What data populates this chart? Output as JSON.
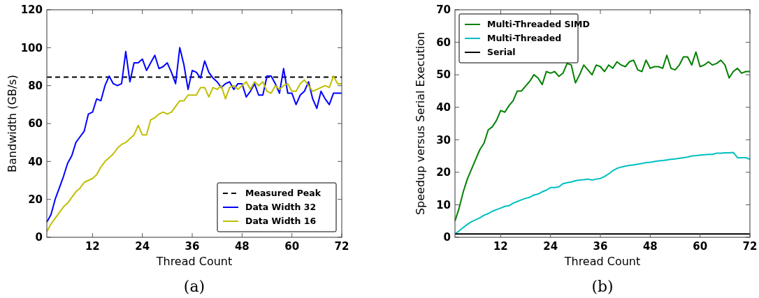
{
  "chart_data": [
    {
      "type": "line",
      "xlabel": "Thread Count",
      "ylabel": "Bandwidth (GB/s)",
      "annotations": [
        "(a)"
      ],
      "x": [
        1,
        2,
        3,
        4,
        5,
        6,
        7,
        8,
        9,
        10,
        11,
        12,
        13,
        14,
        15,
        16,
        17,
        18,
        19,
        20,
        21,
        22,
        23,
        24,
        25,
        26,
        27,
        28,
        29,
        30,
        31,
        32,
        33,
        34,
        35,
        36,
        37,
        38,
        39,
        40,
        41,
        42,
        43,
        44,
        45,
        46,
        47,
        48,
        49,
        50,
        51,
        52,
        53,
        54,
        55,
        56,
        57,
        58,
        59,
        60,
        61,
        62,
        63,
        64,
        65,
        66,
        67,
        68,
        69,
        70,
        71,
        72
      ],
      "xlim": [
        1,
        72
      ],
      "xticks": [
        12,
        24,
        36,
        48,
        60,
        72
      ],
      "ylim": [
        0,
        120
      ],
      "yticks": [
        0,
        20,
        40,
        60,
        80,
        100,
        120
      ],
      "ref_lines": [
        {
          "axis": "y",
          "value": 84.5,
          "label": "Measured Peak",
          "color": "#000000",
          "line_style": "dashed"
        }
      ],
      "series": [
        {
          "name": "Data Width 32",
          "color": "#0000ff",
          "values": [
            8,
            12,
            20,
            26,
            32,
            39,
            43,
            50,
            53,
            56,
            65,
            66,
            73,
            72,
            80,
            85,
            81,
            80,
            81,
            98,
            82,
            92,
            92,
            94,
            88,
            92,
            96,
            89,
            90,
            92,
            87,
            81,
            100,
            91,
            78,
            88,
            87,
            84,
            93,
            87,
            84,
            82,
            79,
            81,
            82,
            78,
            81,
            81,
            74,
            77,
            81,
            75,
            75,
            85,
            85,
            81,
            76,
            89,
            76,
            76,
            70,
            75,
            77,
            82,
            73,
            68,
            77,
            73,
            70,
            76,
            76,
            76
          ]
        },
        {
          "name": "Data Width 16",
          "color": "#bfbf00",
          "values": [
            3,
            7,
            10,
            13,
            16,
            18,
            21,
            24,
            26,
            29,
            30,
            31,
            33,
            37,
            40,
            42,
            44,
            47,
            49,
            50,
            52,
            54,
            59,
            54,
            54,
            62,
            63,
            65,
            66,
            65,
            66,
            69,
            72,
            72,
            75,
            75,
            75,
            79,
            79,
            74,
            79,
            78,
            80,
            73,
            79,
            80,
            78,
            80,
            82,
            78,
            82,
            80,
            82,
            77,
            76,
            80,
            78,
            80,
            81,
            77,
            77,
            81,
            83,
            80,
            77,
            78,
            79,
            80,
            79,
            85,
            81,
            81
          ]
        }
      ],
      "legend": "bottom right",
      "line_style": "solid",
      "marker": "none",
      "grid": false
    },
    {
      "type": "line",
      "xlabel": "Thread Count",
      "ylabel": "Speedup versus Serial Execution",
      "annotations": [
        "(b)"
      ],
      "x": [
        1,
        2,
        3,
        4,
        5,
        6,
        7,
        8,
        9,
        10,
        11,
        12,
        13,
        14,
        15,
        16,
        17,
        18,
        19,
        20,
        21,
        22,
        23,
        24,
        25,
        26,
        27,
        28,
        29,
        30,
        31,
        32,
        33,
        34,
        35,
        36,
        37,
        38,
        39,
        40,
        41,
        42,
        43,
        44,
        45,
        46,
        47,
        48,
        49,
        50,
        51,
        52,
        53,
        54,
        55,
        56,
        57,
        58,
        59,
        60,
        61,
        62,
        63,
        64,
        65,
        66,
        67,
        68,
        69,
        70,
        71,
        72
      ],
      "xlim": [
        1,
        72
      ],
      "xticks": [
        12,
        24,
        36,
        48,
        60,
        72
      ],
      "ylim": [
        0,
        70
      ],
      "yticks": [
        0,
        10,
        20,
        30,
        40,
        50,
        60,
        70
      ],
      "series": [
        {
          "name": "Multi-Threaded SIMD",
          "color": "#008000",
          "values": [
            5,
            9,
            14,
            18,
            21,
            24,
            27,
            29,
            33,
            34,
            36,
            39,
            38.5,
            40.5,
            42,
            45,
            45,
            46.5,
            48,
            50,
            49,
            47,
            51,
            50.5,
            51,
            49.5,
            50.5,
            53.5,
            53,
            47.5,
            50,
            53,
            51.5,
            50,
            53,
            52.5,
            51,
            53,
            52,
            54,
            53,
            52.5,
            54,
            54.5,
            51.5,
            51,
            54.5,
            52,
            52.5,
            52.5,
            52,
            56,
            52,
            51.5,
            53,
            55.5,
            55.5,
            53,
            57,
            52.5,
            53,
            54,
            53,
            53.5,
            54.5,
            53,
            49,
            51,
            52,
            50.5,
            51,
            51
          ]
        },
        {
          "name": "Multi-Threaded",
          "color": "#00bfbf",
          "values": [
            1,
            2,
            3,
            4,
            4.8,
            5.4,
            6,
            6.8,
            7.3,
            8,
            8.5,
            9,
            9.5,
            9.7,
            10.5,
            11,
            11.5,
            12,
            12.3,
            13,
            13.3,
            14,
            14.5,
            15.3,
            15.3,
            15.5,
            16.5,
            16.8,
            17,
            17.4,
            17.6,
            17.7,
            17.9,
            17.6,
            17.9,
            18.1,
            18.7,
            19.5,
            20.5,
            21.2,
            21.6,
            21.9,
            22.1,
            22.3,
            22.5,
            22.7,
            23,
            23.1,
            23.3,
            23.5,
            23.6,
            23.8,
            24,
            24.1,
            24.3,
            24.5,
            24.7,
            25,
            25.1,
            25.3,
            25.4,
            25.5,
            25.5,
            25.9,
            25.9,
            26,
            26,
            26.1,
            24.5,
            24.5,
            24.5,
            24
          ]
        },
        {
          "name": "Serial",
          "color": "#000000",
          "x": [
            1,
            72
          ],
          "values": [
            1,
            1
          ]
        }
      ],
      "legend": "top left",
      "line_style": "solid",
      "marker": "none",
      "grid": false
    }
  ]
}
